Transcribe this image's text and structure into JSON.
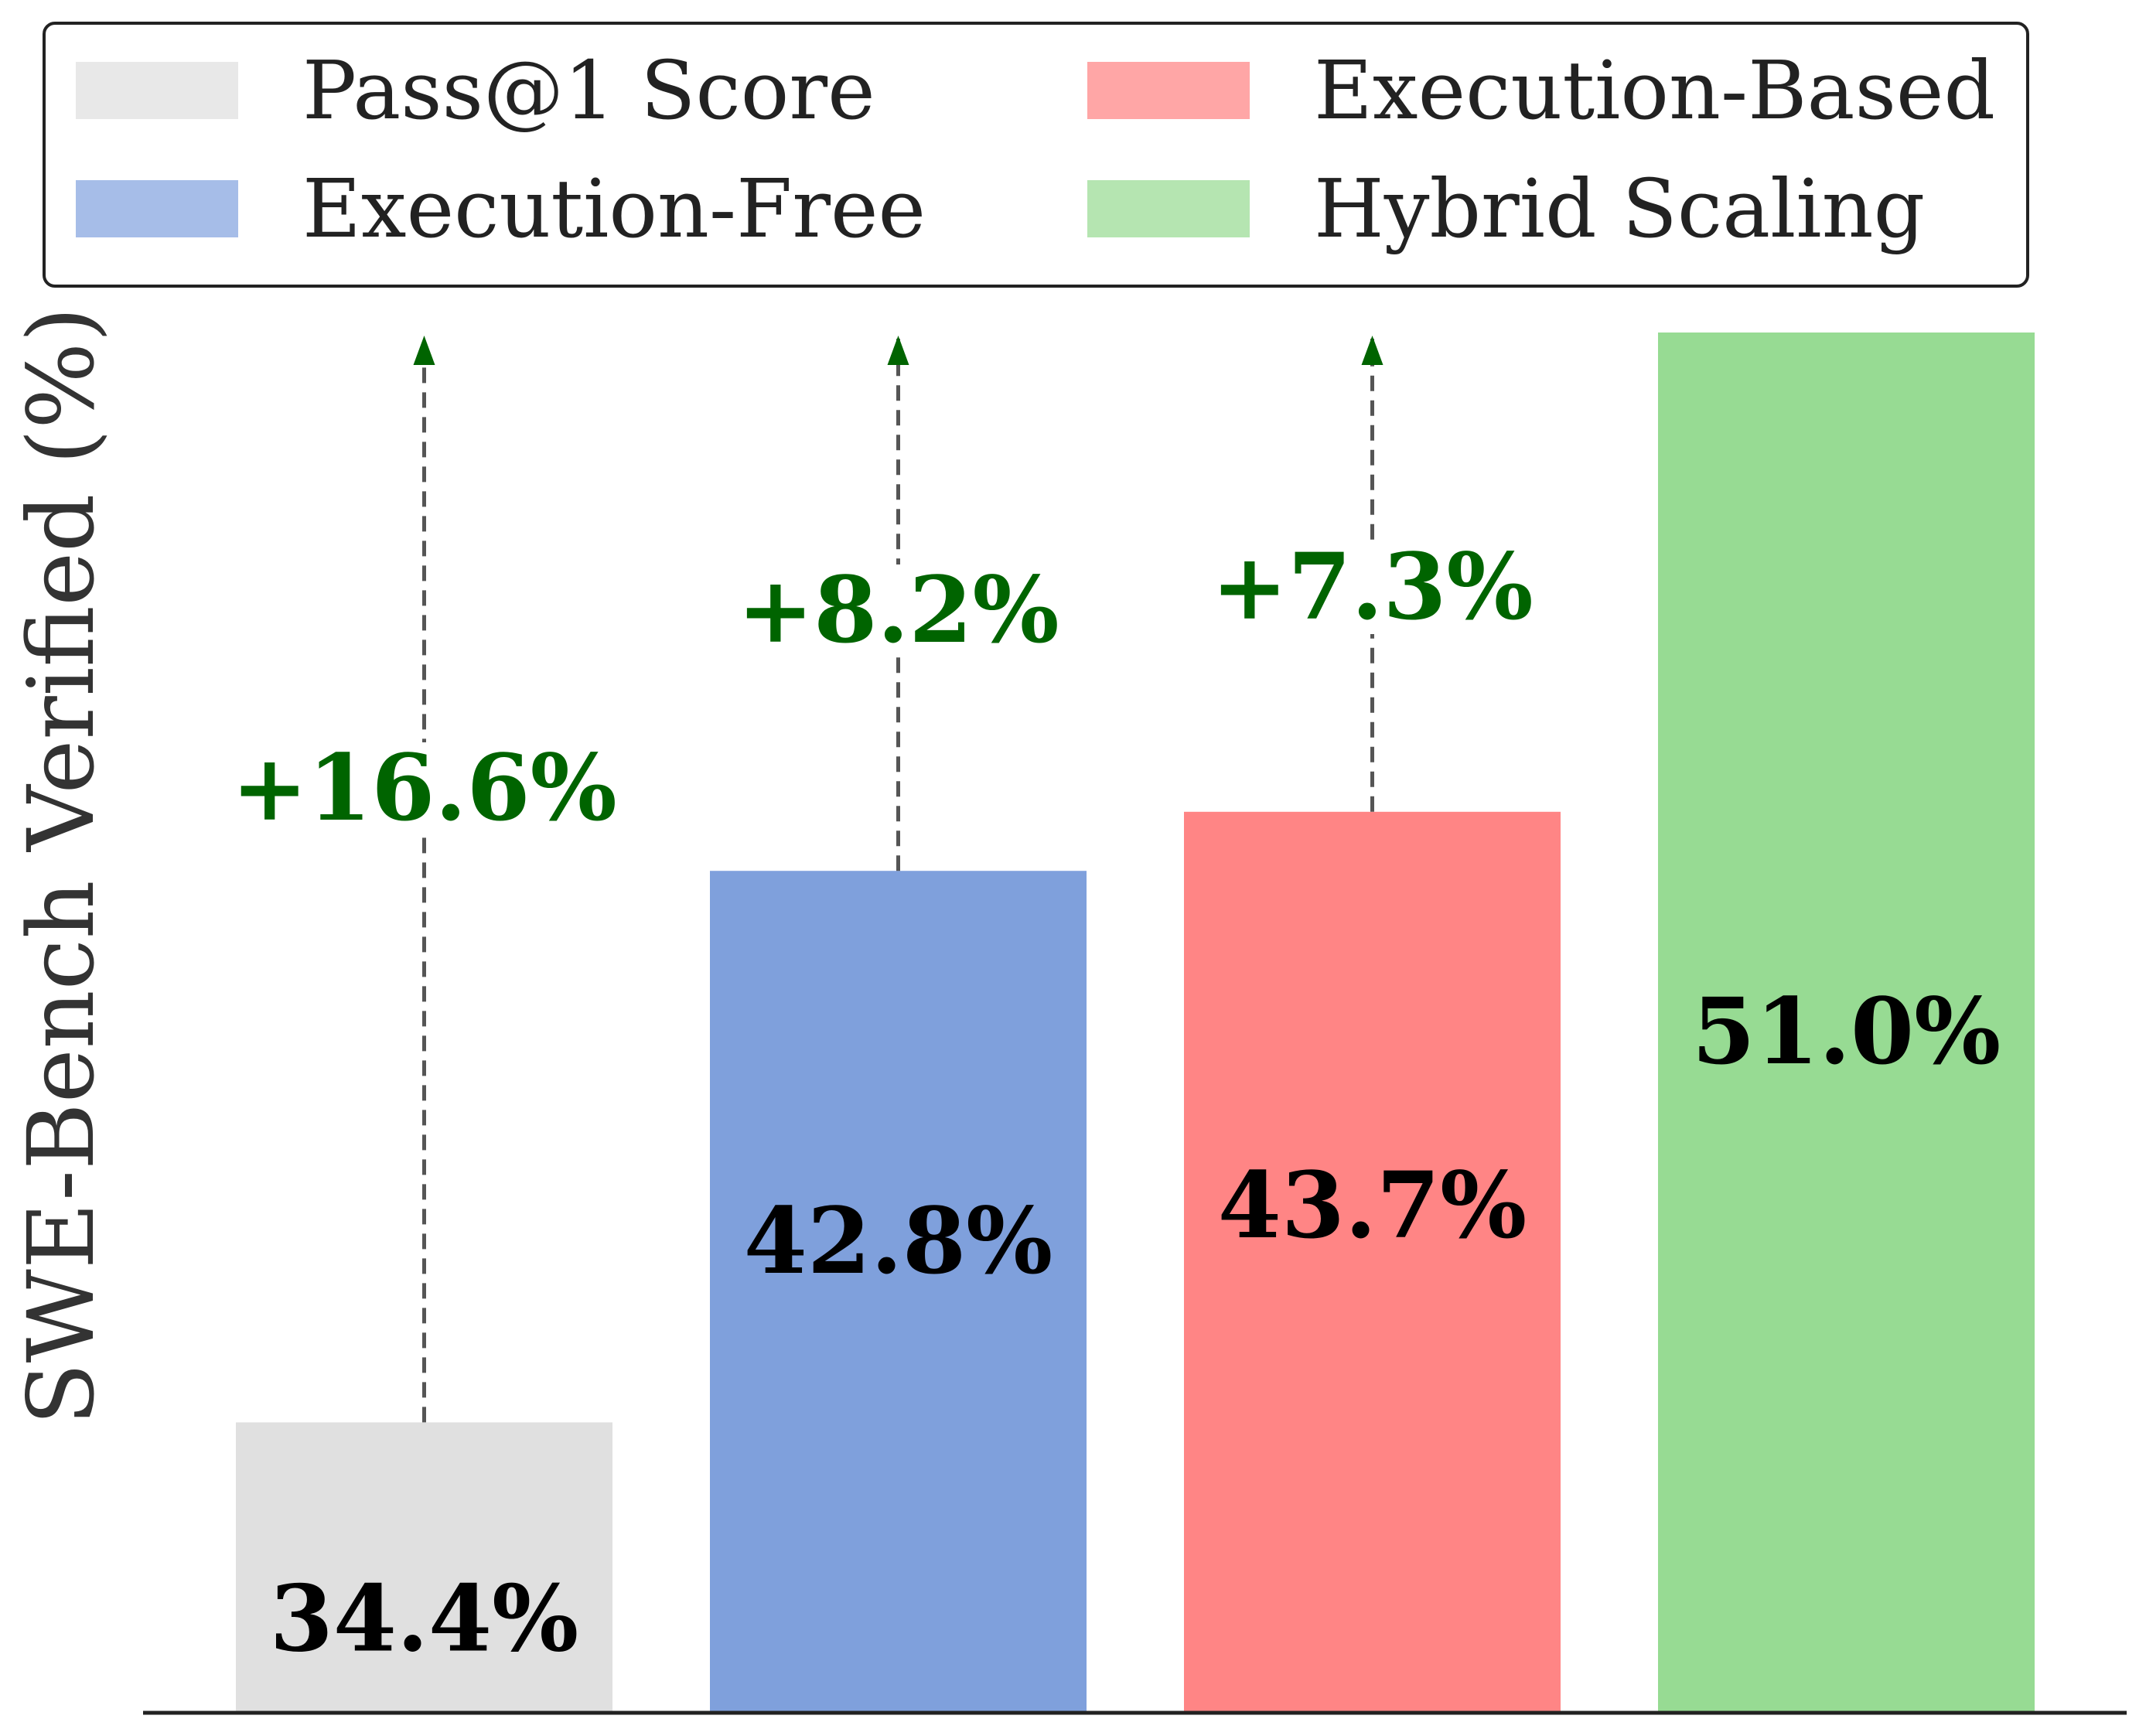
{
  "chart_data": {
    "type": "bar",
    "title": "",
    "xlabel": "",
    "ylabel": "SWE-Bench Verified (%)",
    "ylim": [
      30,
      51
    ],
    "categories": [
      "Pass@1 Score",
      "Execution-Free",
      "Execution-Based",
      "Hybrid Scaling"
    ],
    "values": [
      34.4,
      42.8,
      43.7,
      51.0
    ],
    "value_labels": [
      "34.4%",
      "42.8%",
      "43.7%",
      "51.0%"
    ],
    "colors": [
      "#e0e0e0",
      "#7fa0dc",
      "#ff8585",
      "#97db93"
    ],
    "legend": {
      "placement": "top",
      "entries": [
        {
          "label": "Pass@1 Score",
          "color": "#e8e8e8"
        },
        {
          "label": "Execution-Based",
          "color": "#ffa6a6"
        },
        {
          "label": "Execution-Free",
          "color": "#a6bde8"
        },
        {
          "label": "Hybrid Scaling",
          "color": "#b5e5b1"
        }
      ]
    },
    "annotations": [
      {
        "from_index": 0,
        "to_value": 51.0,
        "text": "+16.6%"
      },
      {
        "from_index": 1,
        "to_value": 51.0,
        "text": "+8.2%"
      },
      {
        "from_index": 2,
        "to_value": 51.0,
        "text": "+7.3%"
      }
    ],
    "annotation_color": "#006400",
    "connector_color": "#555555",
    "axis_color": "#222222"
  }
}
